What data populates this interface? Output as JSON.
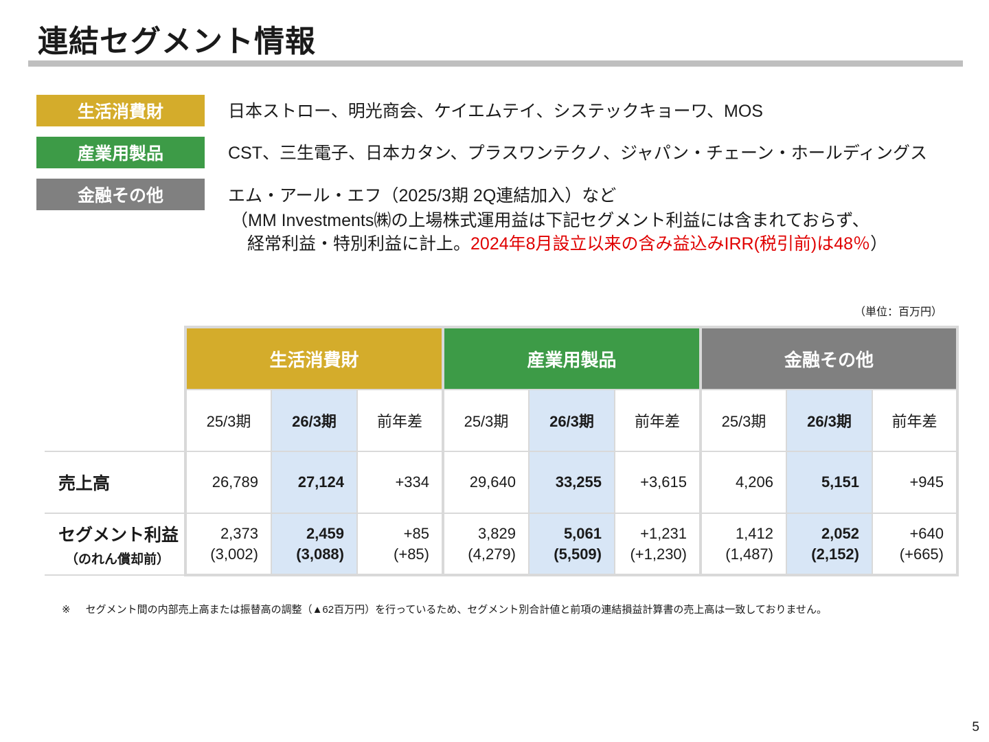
{
  "title": "連結セグメント情報",
  "colors": {
    "consumer": "#d4ac2b",
    "industrial": "#3d9b47",
    "finance": "#808080",
    "highlight": "#d8e6f6",
    "red_text": "#e00000"
  },
  "segments": [
    {
      "label": "生活消費財",
      "text": "日本ストロー、明光商会、ケイエムテイ、システックキョーワ、MOS"
    },
    {
      "label": "産業用製品",
      "text": "CST、三生電子、日本カタン、プラスワンテクノ、ジャパン・チェーン・ホールディングス"
    },
    {
      "label": "金融その他",
      "text_line1": "エム・アール・エフ（2025/3期 2Q連結加入）など",
      "text_line2": "（MM Investments㈱の上場株式運用益は下記セグメント利益には含まれておらず、",
      "text_line3a": "経常利益・特別利益に計上。",
      "text_line3b": "2024年8月設立以来の含み益込みIRR(税引前)は48％",
      "text_line3c": "）"
    }
  ],
  "unit": "（単位：百万円）",
  "table": {
    "headers": [
      "生活消費財",
      "産業用製品",
      "金融その他"
    ],
    "periods": [
      "25/3期",
      "26/3期",
      "前年差"
    ],
    "rows": {
      "sales": {
        "label": "売上高",
        "values": [
          "26,789",
          "27,124",
          "+334",
          "29,640",
          "33,255",
          "+3,615",
          "4,206",
          "5,151",
          "+945"
        ]
      },
      "profit": {
        "label": "セグメント利益",
        "sublabel": "（のれん償却前）",
        "values": [
          "2,373",
          "2,459",
          "+85",
          "3,829",
          "5,061",
          "+1,231",
          "1,412",
          "2,052",
          "+640"
        ],
        "sub_values": [
          "(3,002)",
          "(3,088)",
          "(+85)",
          "(4,279)",
          "(5,509)",
          "(+1,230)",
          "(1,487)",
          "(2,152)",
          "(+665)"
        ]
      }
    }
  },
  "footnote": {
    "mark": "※",
    "text": "セグメント間の内部売上高または振替高の調整（▲62百万円）を行っているため、セグメント別合計値と前項の連結損益計算書の売上高は一致しておりません。"
  },
  "page_number": "5"
}
